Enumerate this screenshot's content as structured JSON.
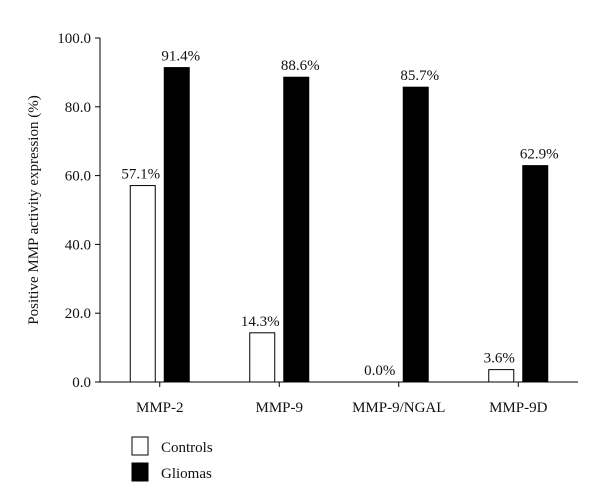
{
  "chart_data": {
    "type": "bar",
    "title": "",
    "xlabel": "",
    "ylabel": "Positive MMP activity expression (%)",
    "ylim": [
      0,
      100
    ],
    "yticks": [
      "0.0",
      "20.0",
      "40.0",
      "60.0",
      "80.0",
      "100.0"
    ],
    "grid": false,
    "legend_position": "bottom-left",
    "categories": [
      "MMP-2",
      "MMP-9",
      "MMP-9/NGAL",
      "MMP-9D"
    ],
    "series": [
      {
        "name": "Controls",
        "color": "#ffffff",
        "values": [
          57.1,
          14.3,
          0.0,
          3.6
        ],
        "labels": [
          "57.1%",
          "14.3%",
          "0.0%",
          "3.6%"
        ]
      },
      {
        "name": "Gliomas",
        "color": "#000000",
        "values": [
          91.4,
          88.6,
          85.7,
          62.9
        ],
        "labels": [
          "91.4%",
          "88.6%",
          "85.7%",
          "62.9%"
        ]
      }
    ]
  }
}
